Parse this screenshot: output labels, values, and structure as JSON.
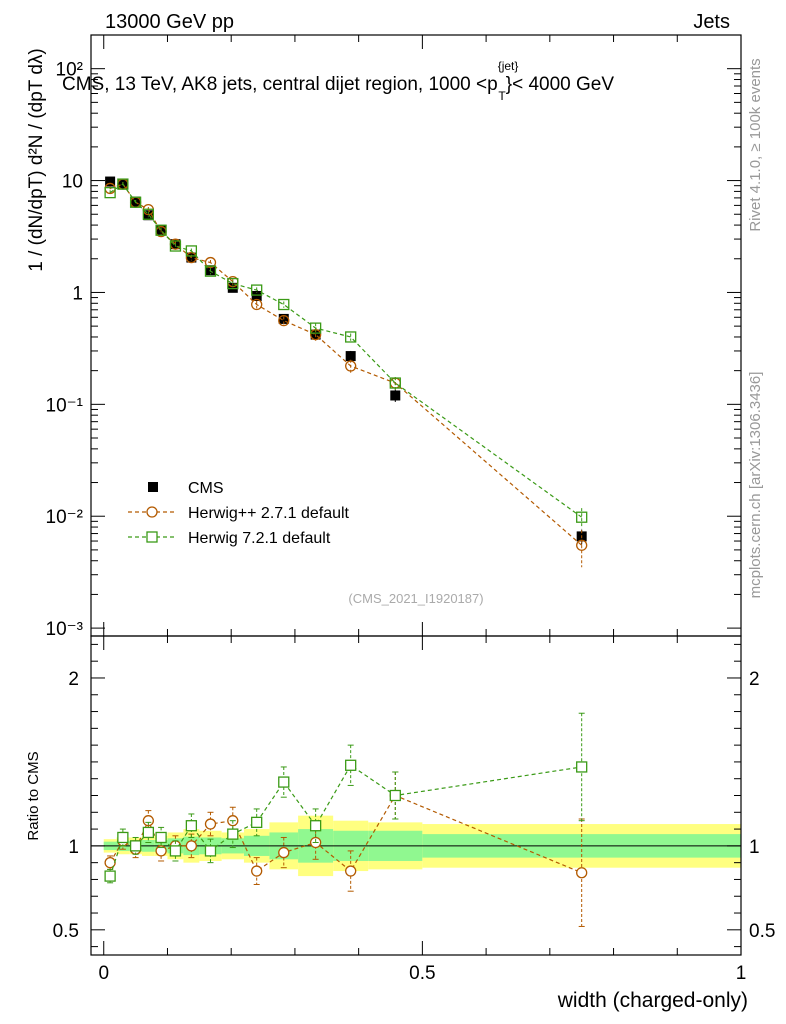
{
  "header": {
    "left": "13000 GeV pp",
    "right": "Jets"
  },
  "side_labels": {
    "rivet": "Rivet 4.1.0, ≥ 100k events",
    "mcplots": "mcplots.cern.ch [arXiv:1306.3436]"
  },
  "colors": {
    "cms": "#000000",
    "herwigpp": "#b35a00",
    "herwig7": "#3a9a16",
    "band_yellow": "#ffff80",
    "band_green": "#90f890"
  },
  "chart_data": {
    "type": "scatter",
    "title": "CMS, 13 TeV, AK8 jets, central dijet region, 1000 <p",
    "title_super": "{jet}",
    "title_sub": "T",
    "title_end": "}< 4000 GeV",
    "watermark": "(CMS_2021_I1920187)",
    "xlabel": "width (charged-only)",
    "ylabel_main": "1 / (dN/dpT) d²N / (dpT dλ)",
    "ylabel_ratio": "Ratio to CMS",
    "xlim": [
      -0.02,
      1.0
    ],
    "ylim_main": [
      0.00085,
      200
    ],
    "ylim_ratio": [
      0.35,
      2.25
    ],
    "x_ticks": [
      0,
      0.5,
      1
    ],
    "x_tick_labels": [
      "0",
      "0.5",
      "1"
    ],
    "y_ticks_main": [
      0.001,
      0.01,
      0.1,
      1,
      10,
      100
    ],
    "y_tick_labels_main": [
      "10⁻³",
      "10⁻²",
      "10⁻¹",
      "1",
      "10",
      "10²"
    ],
    "y_ticks_ratio": [
      0.5,
      1,
      2
    ],
    "y_tick_labels_ratio": [
      "0.5",
      "1",
      "2"
    ],
    "legend": [
      {
        "label": "CMS",
        "style": "cms"
      },
      {
        "label": "Herwig++ 2.7.1 default",
        "style": "herwigpp"
      },
      {
        "label": "Herwig 7.2.1 default",
        "style": "herwig7"
      }
    ],
    "bins": [
      {
        "lo": 0.0,
        "hi": 0.02,
        "y": 9.8,
        "ye": 0.6,
        "yb": [
          0.96,
          1.04
        ],
        "gb": [
          0.975,
          1.025
        ]
      },
      {
        "lo": 0.02,
        "hi": 0.04,
        "y": 9.2,
        "ye": 0.5,
        "yb": [
          0.95,
          1.05
        ],
        "gb": [
          0.97,
          1.03
        ]
      },
      {
        "lo": 0.04,
        "hi": 0.06,
        "y": 6.5,
        "ye": 0.4,
        "yb": [
          0.95,
          1.05
        ],
        "gb": [
          0.97,
          1.03
        ]
      },
      {
        "lo": 0.06,
        "hi": 0.08,
        "y": 4.9,
        "ye": 0.3,
        "yb": [
          0.94,
          1.06
        ],
        "gb": [
          0.965,
          1.035
        ]
      },
      {
        "lo": 0.08,
        "hi": 0.1,
        "y": 3.6,
        "ye": 0.25,
        "yb": [
          0.94,
          1.06
        ],
        "gb": [
          0.965,
          1.035
        ]
      },
      {
        "lo": 0.1,
        "hi": 0.125,
        "y": 2.7,
        "ye": 0.2,
        "yb": [
          0.92,
          1.08
        ],
        "gb": [
          0.955,
          1.045
        ]
      },
      {
        "lo": 0.125,
        "hi": 0.15,
        "y": 2.05,
        "ye": 0.15,
        "yb": [
          0.9,
          1.1
        ],
        "gb": [
          0.945,
          1.055
        ]
      },
      {
        "lo": 0.15,
        "hi": 0.185,
        "y": 1.58,
        "ye": 0.12,
        "yb": [
          0.91,
          1.09
        ],
        "gb": [
          0.95,
          1.05
        ]
      },
      {
        "lo": 0.185,
        "hi": 0.22,
        "y": 1.1,
        "ye": 0.08,
        "yb": [
          0.92,
          1.08
        ],
        "gb": [
          0.955,
          1.045
        ]
      },
      {
        "lo": 0.22,
        "hi": 0.26,
        "y": 0.93,
        "ye": 0.07,
        "yb": [
          0.9,
          1.1
        ],
        "gb": [
          0.94,
          1.06
        ]
      },
      {
        "lo": 0.26,
        "hi": 0.305,
        "y": 0.58,
        "ye": 0.05,
        "yb": [
          0.86,
          1.14
        ],
        "gb": [
          0.92,
          1.08
        ]
      },
      {
        "lo": 0.305,
        "hi": 0.36,
        "y": 0.42,
        "ye": 0.04,
        "yb": [
          0.82,
          1.18
        ],
        "gb": [
          0.9,
          1.1
        ]
      },
      {
        "lo": 0.36,
        "hi": 0.415,
        "y": 0.27,
        "ye": 0.03,
        "yb": [
          0.85,
          1.15
        ],
        "gb": [
          0.91,
          1.09
        ]
      },
      {
        "lo": 0.415,
        "hi": 0.5,
        "y": 0.12,
        "ye": 0.015,
        "yb": [
          0.86,
          1.14
        ],
        "gb": [
          0.91,
          1.09
        ]
      },
      {
        "lo": 0.5,
        "hi": 1.0,
        "y": 0.0066,
        "ye": 0.001,
        "yb": [
          0.87,
          1.13
        ],
        "gb": [
          0.93,
          1.07
        ]
      }
    ],
    "series": [
      {
        "name": "Herwig++ 2.7.1 default",
        "style": "herwigpp",
        "x": [
          0.01,
          0.03,
          0.05,
          0.07,
          0.09,
          0.1125,
          0.1375,
          0.1675,
          0.2025,
          0.24,
          0.2825,
          0.3325,
          0.3875,
          0.4575,
          0.75
        ],
        "values": [
          8.5,
          9.3,
          6.4,
          5.5,
          3.5,
          2.7,
          2.05,
          1.85,
          1.25,
          0.78,
          0.56,
          0.42,
          0.22,
          0.155,
          0.0055
        ],
        "errors": [
          0.4,
          0.4,
          0.3,
          0.3,
          0.2,
          0.15,
          0.12,
          0.1,
          0.08,
          0.06,
          0.05,
          0.05,
          0.03,
          0.02,
          0.002
        ],
        "ratio": [
          0.9,
          1.03,
          0.98,
          1.15,
          0.97,
          1.0,
          1.0,
          1.13,
          1.15,
          0.85,
          0.96,
          1.02,
          0.85,
          1.3,
          0.84
        ],
        "ratio_errors": [
          0.04,
          0.05,
          0.05,
          0.06,
          0.06,
          0.06,
          0.07,
          0.07,
          0.08,
          0.08,
          0.09,
          0.1,
          0.12,
          0.14,
          0.32
        ]
      },
      {
        "name": "Herwig 7.2.1 default",
        "style": "herwig7",
        "x": [
          0.01,
          0.03,
          0.05,
          0.07,
          0.09,
          0.1125,
          0.1375,
          0.1675,
          0.2025,
          0.24,
          0.2825,
          0.3325,
          0.3875,
          0.4575,
          0.75
        ],
        "values": [
          7.8,
          9.3,
          6.4,
          5.0,
          3.6,
          2.6,
          2.35,
          1.55,
          1.2,
          1.05,
          0.78,
          0.48,
          0.4,
          0.155,
          0.0098
        ],
        "errors": [
          0.4,
          0.4,
          0.3,
          0.3,
          0.2,
          0.15,
          0.12,
          0.1,
          0.08,
          0.06,
          0.05,
          0.05,
          0.03,
          0.02,
          0.002
        ],
        "ratio": [
          0.82,
          1.05,
          1.0,
          1.08,
          1.05,
          0.97,
          1.12,
          0.97,
          1.07,
          1.14,
          1.38,
          1.12,
          1.48,
          1.3,
          1.47
        ],
        "ratio_errors": [
          0.04,
          0.05,
          0.05,
          0.06,
          0.06,
          0.06,
          0.07,
          0.07,
          0.08,
          0.08,
          0.09,
          0.1,
          0.12,
          0.14,
          0.32
        ]
      }
    ],
    "cms_points": {
      "name": "CMS",
      "style": "cms",
      "x": [
        0.01,
        0.03,
        0.05,
        0.07,
        0.09,
        0.1125,
        0.1375,
        0.1675,
        0.2025,
        0.24,
        0.2825,
        0.3325,
        0.3875,
        0.4575,
        0.75
      ],
      "values": [
        9.8,
        9.2,
        6.5,
        4.9,
        3.6,
        2.7,
        2.05,
        1.58,
        1.1,
        0.93,
        0.58,
        0.42,
        0.27,
        0.12,
        0.0066
      ]
    }
  }
}
